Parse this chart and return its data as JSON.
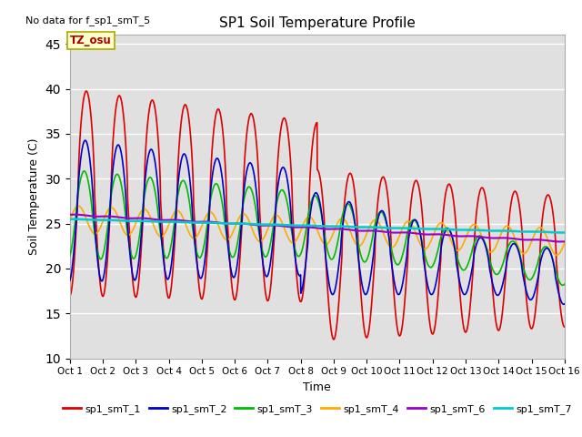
{
  "title": "SP1 Soil Temperature Profile",
  "xlabel": "Time",
  "ylabel": "Soil Temperature (C)",
  "no_data_text": "No data for f_sp1_smT_5",
  "tz_label": "TZ_osu",
  "xlim": [
    0,
    15
  ],
  "ylim": [
    10,
    46
  ],
  "yticks": [
    10,
    15,
    20,
    25,
    30,
    35,
    40,
    45
  ],
  "xtick_labels": [
    "Oct 1",
    "Oct 2",
    "Oct 3",
    "Oct 4",
    "Oct 5",
    "Oct 6",
    "Oct 7",
    "Oct 8",
    "Oct 9",
    "Oct 10",
    "Oct 11",
    "Oct 12",
    "Oct 13",
    "Oct 14",
    "Oct 15",
    "Oct 16"
  ],
  "background_color": "#e0e0e0",
  "grid_color": "#ffffff",
  "series": {
    "sp1_smT_1": {
      "color": "#dd0000",
      "lw": 1.2
    },
    "sp1_smT_2": {
      "color": "#0000cc",
      "lw": 1.2
    },
    "sp1_smT_3": {
      "color": "#00bb00",
      "lw": 1.2
    },
    "sp1_smT_4": {
      "color": "#ffaa00",
      "lw": 1.2
    },
    "sp1_smT_6": {
      "color": "#9900cc",
      "lw": 1.5
    },
    "sp1_smT_7": {
      "color": "#00cccc",
      "lw": 1.8
    }
  }
}
